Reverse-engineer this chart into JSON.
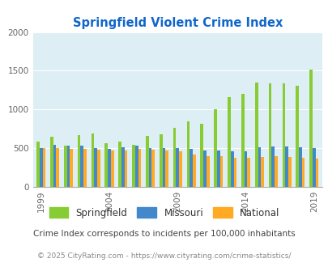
{
  "title": "Springfield Violent Crime Index",
  "years": [
    1999,
    2000,
    2001,
    2002,
    2003,
    2004,
    2005,
    2006,
    2007,
    2008,
    2009,
    2010,
    2011,
    2012,
    2013,
    2014,
    2015,
    2016,
    2017,
    2018,
    2019
  ],
  "springfield": [
    580,
    650,
    530,
    670,
    685,
    560,
    590,
    540,
    660,
    680,
    760,
    850,
    810,
    1000,
    1160,
    1200,
    1350,
    1340,
    1340,
    1310,
    1510
  ],
  "missouri": [
    500,
    540,
    530,
    530,
    500,
    495,
    510,
    530,
    500,
    505,
    500,
    490,
    465,
    465,
    455,
    460,
    510,
    520,
    520,
    510,
    500
  ],
  "national": [
    500,
    500,
    490,
    490,
    480,
    465,
    465,
    490,
    480,
    465,
    455,
    415,
    395,
    395,
    380,
    375,
    385,
    395,
    385,
    375,
    370
  ],
  "springfield_color": "#88cc33",
  "missouri_color": "#4488cc",
  "national_color": "#ffaa22",
  "bg_color": "#ddeef5",
  "ylim": [
    0,
    2000
  ],
  "yticks": [
    0,
    500,
    1000,
    1500,
    2000
  ],
  "xtick_years": [
    1999,
    2004,
    2009,
    2014,
    2019
  ],
  "subtitle": "Crime Index corresponds to incidents per 100,000 inhabitants",
  "footer": "© 2025 CityRating.com - https://www.cityrating.com/crime-statistics/",
  "legend_labels": [
    "Springfield",
    "Missouri",
    "National"
  ],
  "title_color": "#1166cc",
  "subtitle_color": "#444444",
  "footer_color": "#888888",
  "bar_width": 0.22
}
